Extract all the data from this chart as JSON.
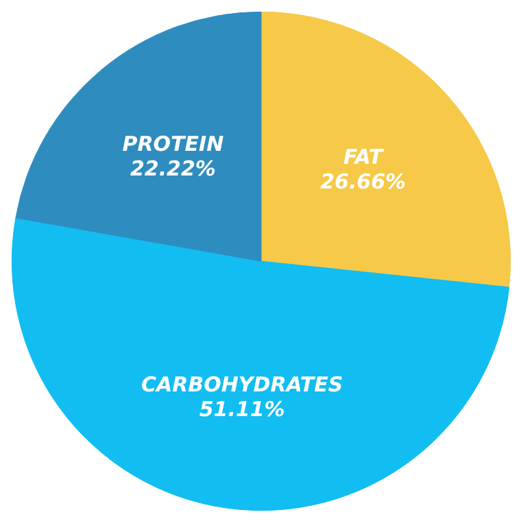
{
  "chart_data": {
    "type": "pie",
    "categories": [
      "FAT",
      "CARBOHYDRATES",
      "PROTEIN"
    ],
    "values": [
      26.66,
      51.11,
      22.22
    ],
    "colors": [
      "#f7c948",
      "#12bdf2",
      "#2f8cbf"
    ],
    "value_labels": [
      "26.66%",
      "51.11%",
      "22.22%"
    ]
  }
}
